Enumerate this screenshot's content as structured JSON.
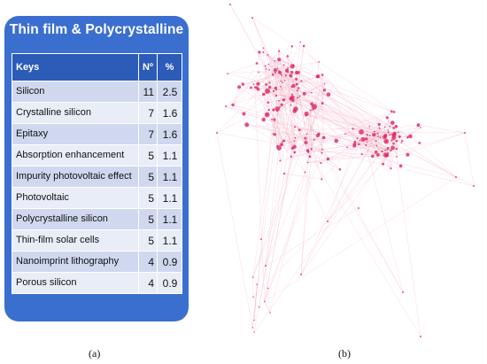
{
  "panel_a": {
    "title": "Thin film & Polycrystalline",
    "headers": {
      "keys": "Keys",
      "num": "Nº",
      "pct": "%"
    },
    "rows": [
      {
        "key": "Silicon",
        "num": "11",
        "pct": "2.5"
      },
      {
        "key": "Crystalline silicon",
        "num": "7",
        "pct": "1.6"
      },
      {
        "key": "Epitaxy",
        "num": "7",
        "pct": "1.6"
      },
      {
        "key": "Absorption enhancement",
        "num": "5",
        "pct": "1.1"
      },
      {
        "key": "Impurity photovoltaic effect",
        "num": "5",
        "pct": "1.1"
      },
      {
        "key": "Photovoltaic",
        "num": "5",
        "pct": "1.1"
      },
      {
        "key": "Polycrystalline silicon",
        "num": "5",
        "pct": "1.1"
      },
      {
        "key": "Thin-film solar cells",
        "num": "5",
        "pct": "1.1"
      },
      {
        "key": "Nanoimprint lithography",
        "num": "4",
        "pct": "0.9"
      },
      {
        "key": "Porous silicon",
        "num": "4",
        "pct": "0.9"
      }
    ],
    "caption": "(a)"
  },
  "panel_b": {
    "caption": "(b)",
    "node_color": "#e0245e",
    "edge_color": "#f2a0b8"
  }
}
